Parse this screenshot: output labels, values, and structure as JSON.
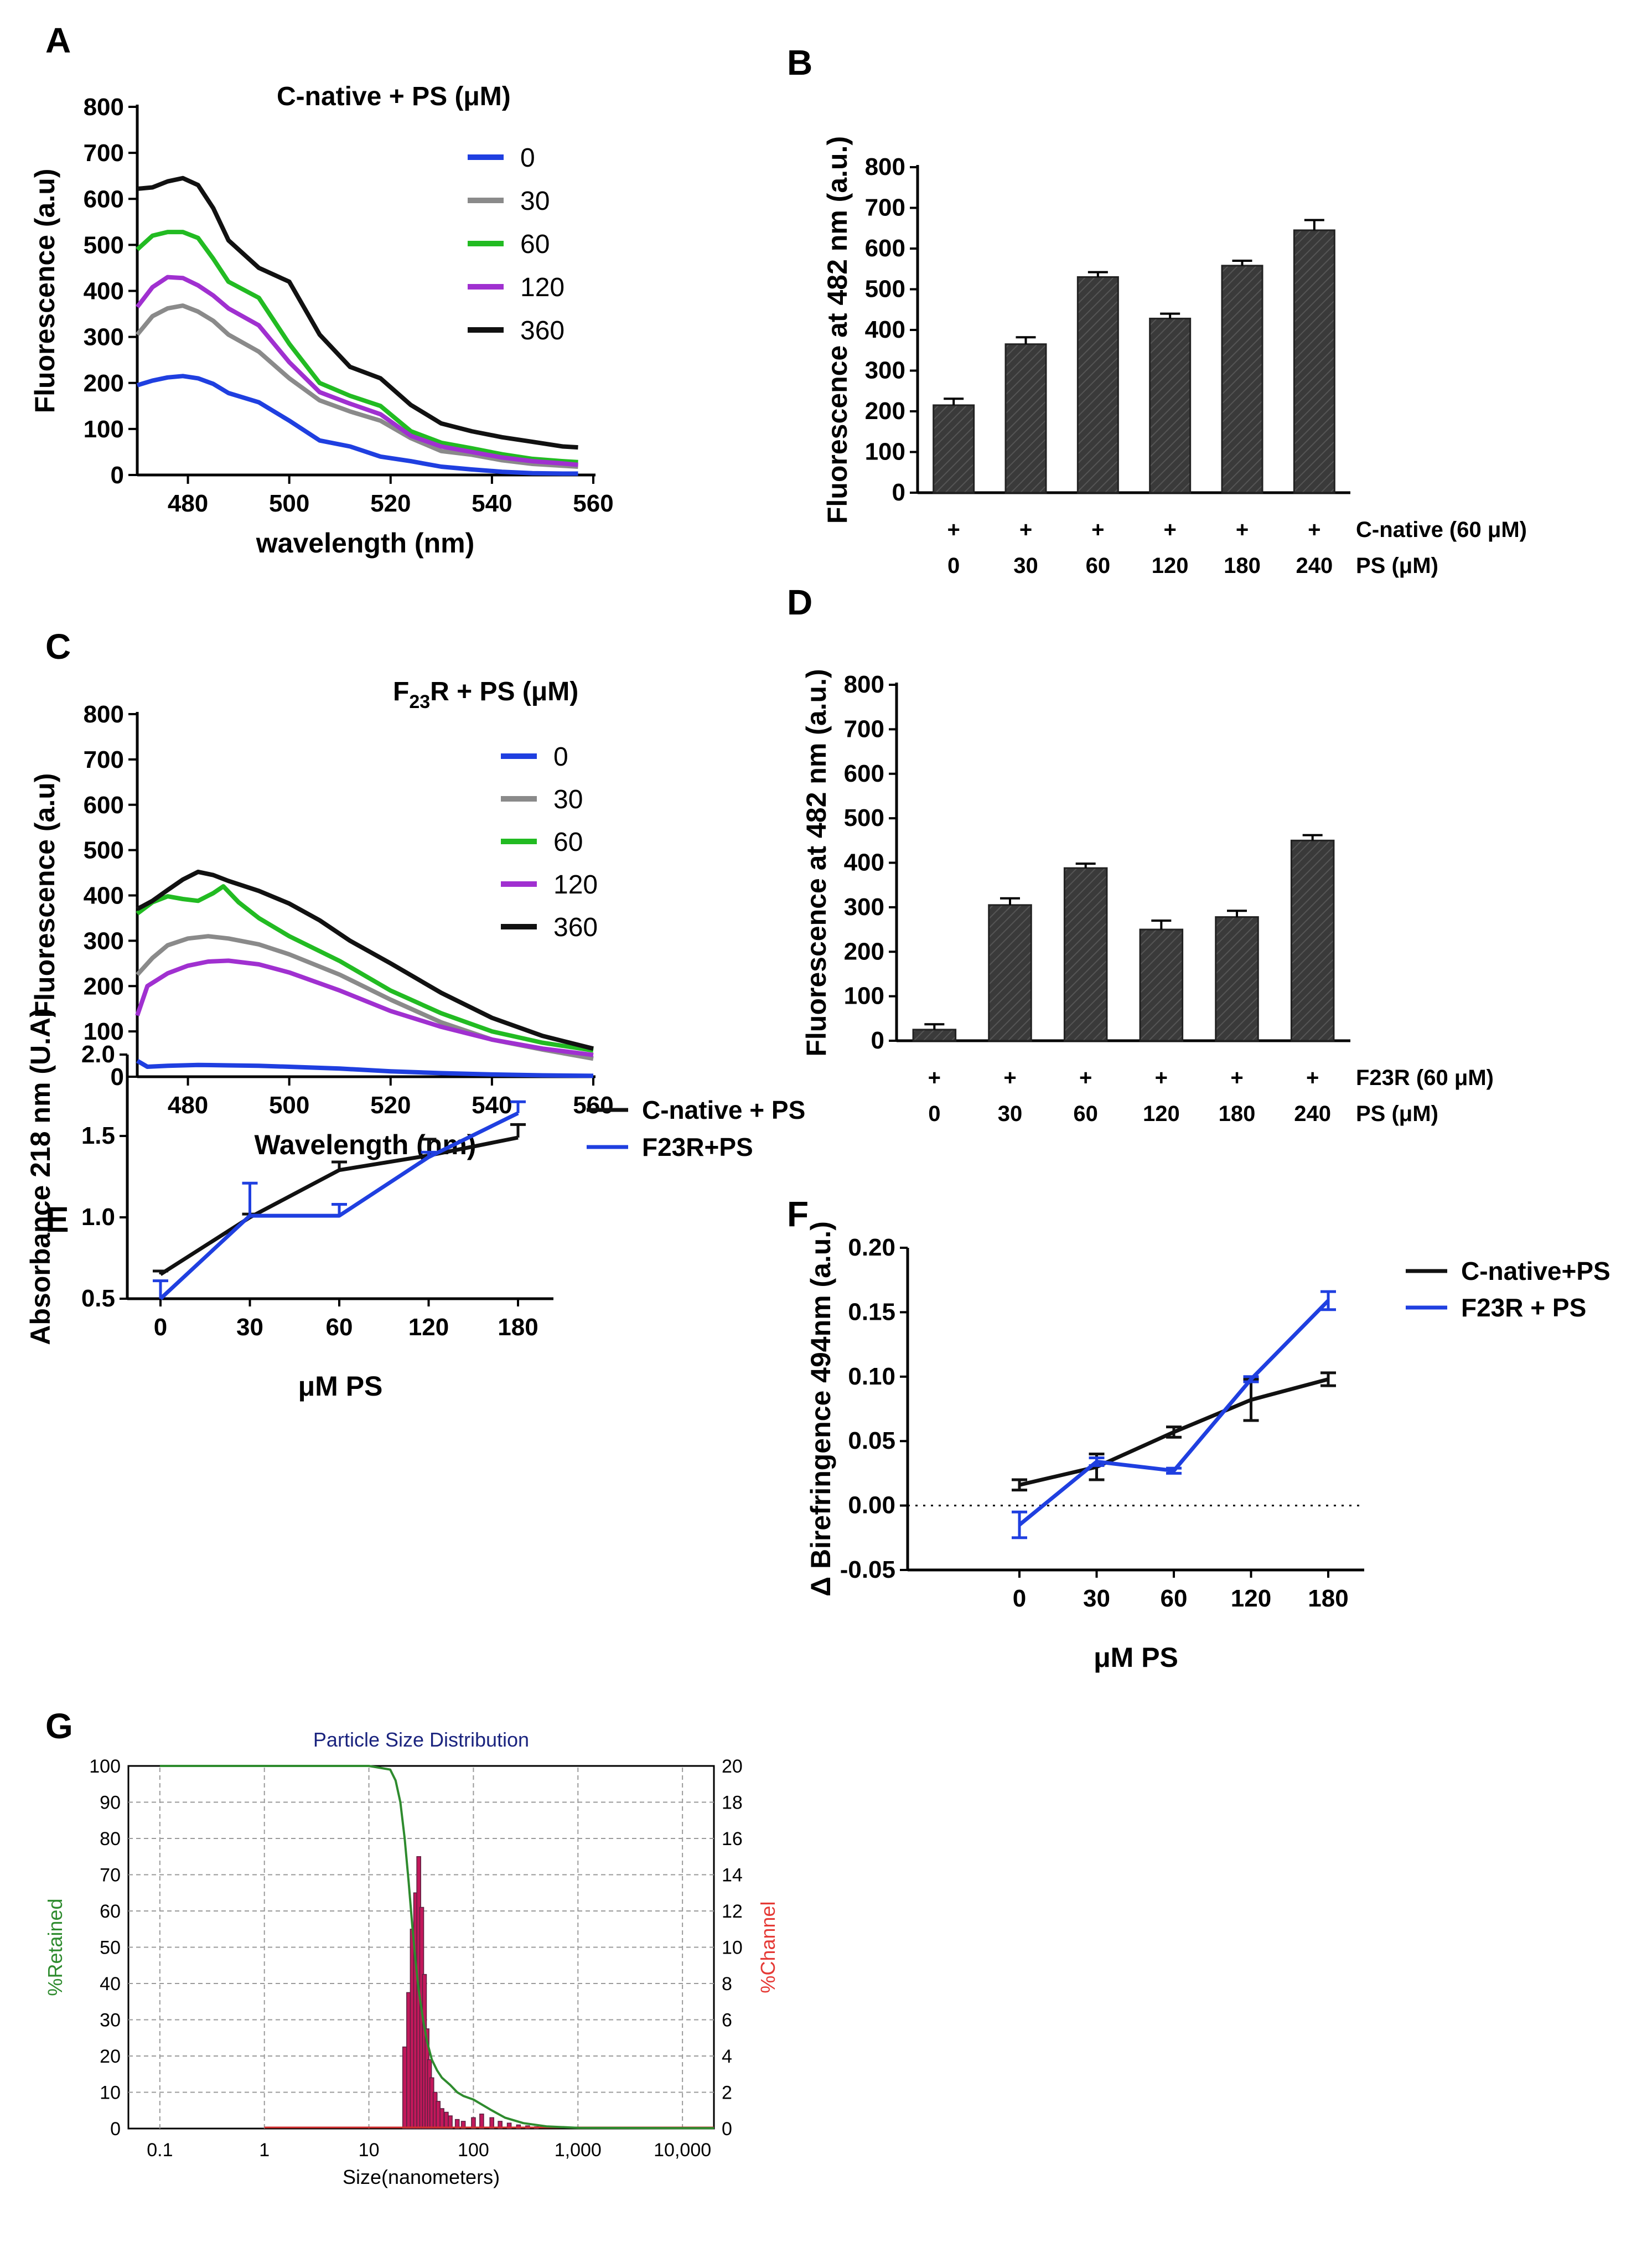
{
  "figure": {
    "panel_letters": [
      "A",
      "B",
      "C",
      "D",
      "E",
      "F",
      "G"
    ]
  },
  "chart_data": [
    {
      "id": "A",
      "type": "line",
      "title": "C-native + PS (μM)",
      "xlabel": "wavelength (nm)",
      "ylabel": "Fluorescence (a.u)",
      "xlim": [
        470,
        560
      ],
      "ylim": [
        0,
        800
      ],
      "xticks": [
        480,
        500,
        520,
        540,
        560
      ],
      "yticks": [
        0,
        100,
        200,
        300,
        400,
        500,
        600,
        700,
        800
      ],
      "series": [
        {
          "name": "0",
          "color": "#1f3fe0",
          "x": [
            470,
            473,
            476,
            479,
            482,
            485,
            488,
            494,
            500,
            506,
            512,
            518,
            524,
            530,
            536,
            542,
            548,
            554,
            557
          ],
          "y": [
            195,
            205,
            212,
            215,
            210,
            198,
            178,
            158,
            118,
            75,
            62,
            40,
            30,
            18,
            12,
            7,
            4,
            3,
            3
          ]
        },
        {
          "name": "30",
          "color": "#8a8a8a",
          "x": [
            470,
            473,
            476,
            479,
            482,
            485,
            488,
            494,
            500,
            506,
            512,
            518,
            524,
            530,
            536,
            542,
            548,
            554,
            557
          ],
          "y": [
            305,
            345,
            362,
            368,
            355,
            335,
            305,
            268,
            210,
            162,
            138,
            118,
            80,
            52,
            44,
            32,
            24,
            20,
            18
          ]
        },
        {
          "name": "60",
          "color": "#22bb22",
          "x": [
            470,
            473,
            476,
            479,
            482,
            485,
            488,
            494,
            500,
            506,
            512,
            518,
            524,
            530,
            536,
            542,
            548,
            554,
            557
          ],
          "y": [
            490,
            520,
            528,
            528,
            515,
            470,
            420,
            385,
            285,
            200,
            172,
            150,
            95,
            70,
            58,
            45,
            35,
            30,
            28
          ]
        },
        {
          "name": "120",
          "color": "#a030d0",
          "x": [
            470,
            473,
            476,
            479,
            482,
            485,
            488,
            494,
            500,
            506,
            512,
            518,
            524,
            530,
            536,
            542,
            548,
            554,
            557
          ],
          "y": [
            365,
            408,
            430,
            428,
            412,
            390,
            362,
            325,
            245,
            180,
            155,
            132,
            85,
            62,
            50,
            38,
            30,
            25,
            22
          ]
        },
        {
          "name": "360",
          "color": "#111111",
          "x": [
            470,
            473,
            476,
            479,
            482,
            485,
            488,
            494,
            500,
            506,
            512,
            518,
            524,
            530,
            536,
            542,
            548,
            554,
            557
          ],
          "y": [
            622,
            625,
            638,
            645,
            630,
            580,
            510,
            450,
            420,
            305,
            235,
            210,
            152,
            112,
            95,
            82,
            72,
            62,
            60
          ]
        }
      ]
    },
    {
      "id": "B",
      "type": "bar",
      "ylabel": "Fluorescence at 482 nm (a.u.)",
      "ylim": [
        0,
        800
      ],
      "yticks": [
        0,
        100,
        200,
        300,
        400,
        500,
        600,
        700,
        800
      ],
      "categories": [
        "0",
        "30",
        "60",
        "120",
        "180",
        "240"
      ],
      "values": [
        215,
        365,
        530,
        428,
        558,
        645
      ],
      "errors": [
        16,
        17,
        12,
        12,
        12,
        25
      ],
      "row_plus": [
        "+",
        "+",
        "+",
        "+",
        "+",
        "+"
      ],
      "row_label_1": "C-native (60 μM)",
      "row_label_2": "PS (μM)",
      "bar_color": "#3a3a3a"
    },
    {
      "id": "C",
      "type": "line",
      "title": "F₂₃R + PS (μM)",
      "title_main": "F",
      "title_sub": "23",
      "title_rest": "R + PS (μM)",
      "xlabel": "Wavelength (nm)",
      "ylabel": "Fluorescence (a.u)",
      "xlim": [
        470,
        560
      ],
      "ylim": [
        0,
        800
      ],
      "xticks": [
        480,
        500,
        520,
        540,
        560
      ],
      "yticks": [
        0,
        100,
        200,
        300,
        400,
        500,
        600,
        700,
        800
      ],
      "series": [
        {
          "name": "0",
          "color": "#1f3fe0",
          "x": [
            470,
            472,
            476,
            482,
            488,
            494,
            500,
            510,
            520,
            530,
            540,
            550,
            560
          ],
          "y": [
            35,
            22,
            24,
            26,
            25,
            24,
            22,
            18,
            12,
            8,
            5,
            3,
            2
          ]
        },
        {
          "name": "30",
          "color": "#8a8a8a",
          "x": [
            470,
            473,
            476,
            480,
            484,
            488,
            494,
            500,
            510,
            520,
            530,
            540,
            550,
            560
          ],
          "y": [
            225,
            262,
            290,
            305,
            310,
            305,
            292,
            270,
            225,
            170,
            120,
            82,
            60,
            40
          ]
        },
        {
          "name": "60",
          "color": "#22bb22",
          "x": [
            470,
            473,
            476,
            479,
            482,
            485,
            487,
            490,
            494,
            500,
            510,
            520,
            530,
            540,
            550,
            560
          ],
          "y": [
            360,
            385,
            398,
            392,
            388,
            405,
            420,
            385,
            350,
            310,
            255,
            190,
            140,
            100,
            75,
            58
          ]
        },
        {
          "name": "120",
          "color": "#a030d0",
          "x": [
            470,
            472,
            476,
            480,
            484,
            488,
            494,
            500,
            510,
            520,
            530,
            540,
            550,
            560
          ],
          "y": [
            135,
            200,
            228,
            245,
            254,
            256,
            248,
            230,
            190,
            145,
            110,
            82,
            62,
            48
          ]
        },
        {
          "name": "360",
          "color": "#111111",
          "x": [
            470,
            473,
            476,
            479,
            482,
            485,
            488,
            494,
            500,
            506,
            512,
            520,
            530,
            540,
            550,
            560
          ],
          "y": [
            370,
            388,
            412,
            435,
            452,
            445,
            432,
            410,
            382,
            345,
            300,
            250,
            185,
            130,
            90,
            62
          ]
        }
      ]
    },
    {
      "id": "D",
      "type": "bar",
      "ylabel": "Fluorescence at 482 nm (a.u.)",
      "ylim": [
        0,
        800
      ],
      "yticks": [
        0,
        100,
        200,
        300,
        400,
        500,
        600,
        700,
        800
      ],
      "categories": [
        "0",
        "30",
        "60",
        "120",
        "180",
        "240"
      ],
      "values": [
        25,
        305,
        388,
        250,
        278,
        450
      ],
      "errors": [
        12,
        15,
        10,
        20,
        14,
        12
      ],
      "row_plus": [
        "+",
        "+",
        "+",
        "+",
        "+",
        "+"
      ],
      "row_label_1": "F23R (60 μM)",
      "row_label_2": "PS (μM)",
      "bar_color": "#3a3a3a"
    },
    {
      "id": "E",
      "type": "line",
      "xlabel": "μM PS",
      "ylabel": "Absorbance 218 nm (U.A)",
      "ylim": [
        0.5,
        2.0
      ],
      "yticks": [
        "0.5",
        "1.0",
        "1.5",
        "2.0"
      ],
      "categories": [
        "0",
        "30",
        "60",
        "120",
        "180"
      ],
      "series": [
        {
          "name": "C-native + PS",
          "color": "#111111",
          "values": [
            0.65,
            1.0,
            1.29,
            1.38,
            1.49
          ],
          "errors": [
            0.02,
            0.02,
            0.05,
            0.1,
            0.08
          ]
        },
        {
          "name": "F23R+PS",
          "color": "#1f3fe0",
          "values": [
            0.5,
            1.01,
            1.01,
            1.37,
            1.64
          ],
          "errors": [
            0.11,
            0.2,
            0.07,
            0.03,
            0.07
          ]
        }
      ]
    },
    {
      "id": "F",
      "type": "line",
      "xlabel": "μM PS",
      "ylabel": "Δ Birefringence  494nm (a.u.)",
      "ylim": [
        -0.05,
        0.2
      ],
      "yticks": [
        "-0.05",
        "0.00",
        "0.05",
        "0.10",
        "0.15",
        "0.20"
      ],
      "categories": [
        "0",
        "30",
        "60",
        "120",
        "180"
      ],
      "reference_line": 0.0,
      "series": [
        {
          "name": "C-native+PS",
          "color": "#111111",
          "values": [
            0.016,
            0.03,
            0.057,
            0.082,
            0.098
          ],
          "errors": [
            0.004,
            0.01,
            0.004,
            0.016,
            0.005
          ]
        },
        {
          "name": "F23R + PS",
          "color": "#1f3fe0",
          "values": [
            -0.015,
            0.034,
            0.027,
            0.098,
            0.159
          ],
          "errors": [
            0.01,
            0.003,
            0.002,
            0.002,
            0.007
          ]
        }
      ]
    },
    {
      "id": "G",
      "type": "bar",
      "title": "Particle Size Distribution",
      "xlabel": "Size(nanometers)",
      "ylabel": "%Retained",
      "ylabel_right": "%Channel",
      "xscale": "log",
      "xlim": [
        0.05,
        20000
      ],
      "xticks": [
        "0.1",
        "1",
        "10",
        "100",
        "1,000",
        "10,000"
      ],
      "xtick_values": [
        0.1,
        1,
        10,
        100,
        1000,
        10000
      ],
      "ylim": [
        0,
        100
      ],
      "yticks": [
        0,
        10,
        20,
        30,
        40,
        50,
        60,
        70,
        80,
        90,
        100
      ],
      "ylim_right": [
        0,
        20
      ],
      "yticks_right": [
        0,
        2,
        4,
        6,
        8,
        10,
        12,
        14,
        16,
        18,
        20
      ],
      "retained_curve": {
        "name": "%Retained",
        "color": "#2e8b2e",
        "x": [
          0.1,
          1,
          10,
          16,
          18,
          20,
          22,
          24,
          26,
          28,
          30,
          33,
          36,
          40,
          45,
          50,
          60,
          70,
          80,
          100,
          150,
          200,
          300,
          500,
          1000,
          10000,
          20000
        ],
        "y": [
          100,
          100,
          100,
          99,
          96,
          90,
          80,
          68,
          56,
          46,
          38,
          30,
          24,
          19,
          16,
          14,
          12,
          10,
          9,
          8,
          5,
          3,
          1.5,
          0.6,
          0.2,
          0.1,
          0.1
        ]
      },
      "channel_bars": {
        "name": "%Channel",
        "color": "#c2185b",
        "x": [
          22,
          24,
          26,
          28,
          30,
          32,
          34,
          36,
          38,
          40,
          43,
          46,
          50,
          55,
          60,
          70,
          80,
          100,
          120,
          150,
          180,
          220,
          270,
          330,
          400
        ],
        "y": [
          4.5,
          7.5,
          11,
          13,
          15,
          12.2,
          8.5,
          5.5,
          3.8,
          2.8,
          2,
          1.5,
          1.1,
          0.9,
          0.7,
          0.5,
          0.4,
          0.6,
          0.8,
          0.6,
          0.4,
          0.3,
          0.2,
          0.15,
          0.1
        ]
      }
    }
  ]
}
